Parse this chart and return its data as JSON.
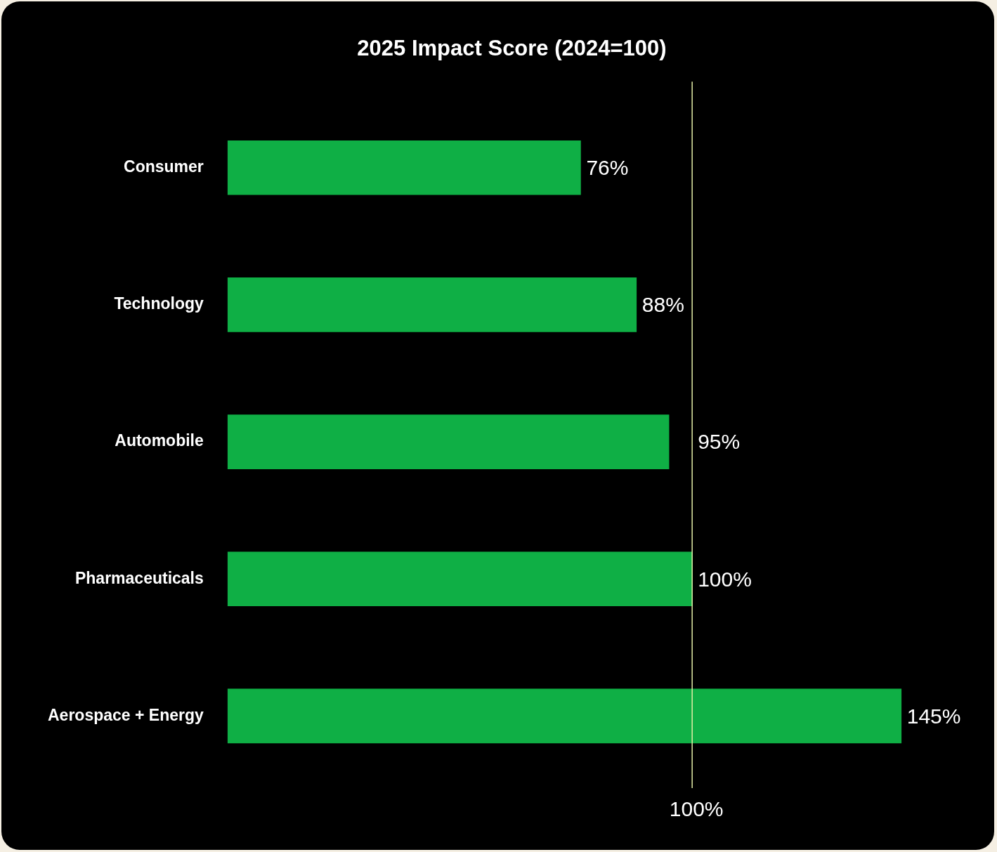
{
  "chart_data": {
    "type": "bar",
    "orientation": "horizontal",
    "title": "2025 Impact Score (2024=100)",
    "categories": [
      "Consumer",
      "Technology",
      "Automobile",
      "Pharmaceuticals",
      "Aerospace + Energy"
    ],
    "values": [
      76,
      88,
      95,
      100,
      145
    ],
    "value_labels": [
      "76%",
      "88%",
      "95%",
      "100%",
      "145%"
    ],
    "color": "#0faf45",
    "xlim": [
      0,
      165
    ],
    "tick_labels": "y",
    "grid": false,
    "legend": false,
    "ref_lines": [
      {
        "axis": "x",
        "value": 100,
        "label": "100%",
        "color": "#e6efa8"
      }
    ]
  }
}
